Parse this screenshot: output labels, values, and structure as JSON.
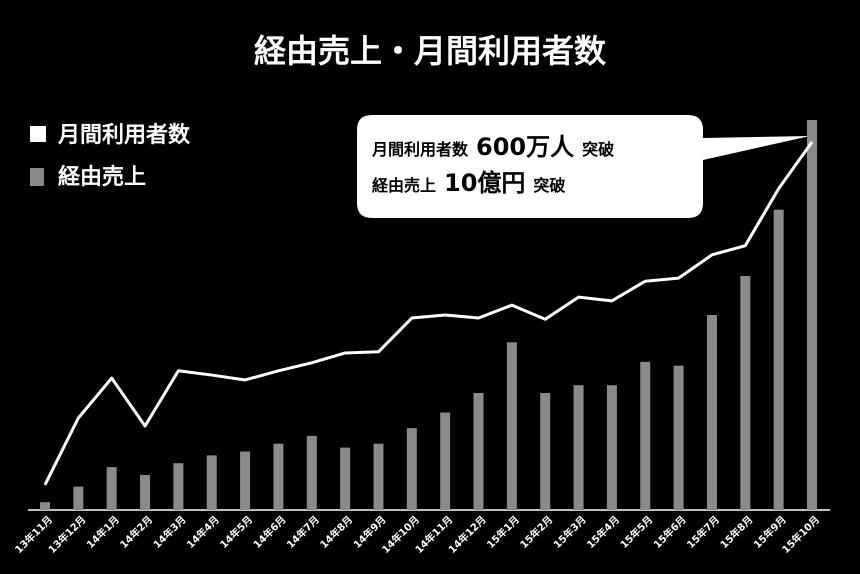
{
  "chart_data": {
    "type": "bar-line",
    "title": "経由売上・月間利用者数",
    "categories": [
      "13年11月",
      "13年12月",
      "14年1月",
      "14年2月",
      "14年3月",
      "14年4月",
      "14年5月",
      "14年6月",
      "14年7月",
      "14年8月",
      "14年9月",
      "14年10月",
      "14年11月",
      "14年12月",
      "15年1月",
      "15年2月",
      "15年3月",
      "15年4月",
      "15年5月",
      "15年6月",
      "15年7月",
      "15年8月",
      "15年9月",
      "15年10月"
    ],
    "series": [
      {
        "name": "月間利用者数",
        "type": "line",
        "color": "#ffffff",
        "values": [
          41,
          150,
          215,
          137,
          227,
          220,
          212,
          227,
          240,
          256,
          258,
          313,
          318,
          313,
          334,
          311,
          347,
          341,
          373,
          378,
          416,
          431,
          524,
          600
        ]
      },
      {
        "name": "経由売上",
        "type": "bar",
        "color": "#8a8a8a",
        "values": [
          0.2,
          0.6,
          1.1,
          0.9,
          1.2,
          1.4,
          1.5,
          1.7,
          1.9,
          1.6,
          1.7,
          2.1,
          2.5,
          3.0,
          4.3,
          3.0,
          3.2,
          3.2,
          3.8,
          3.7,
          5.0,
          6.0,
          7.7,
          10
        ]
      }
    ],
    "annotation": [
      [
        "月間利用者数",
        "600万人",
        "突破"
      ],
      [
        "経由売上",
        "10億円",
        "突破"
      ]
    ]
  }
}
